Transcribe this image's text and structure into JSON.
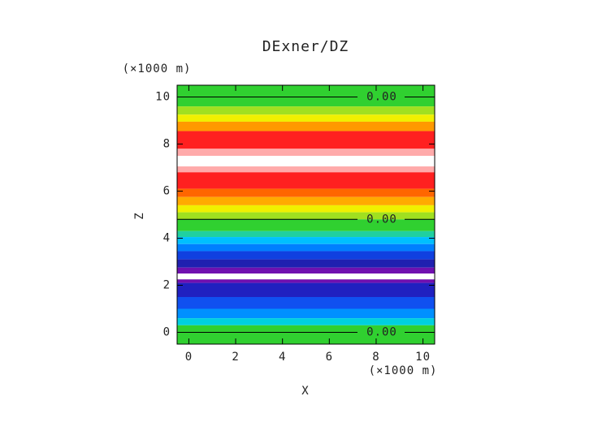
{
  "chart_data": {
    "type": "contour",
    "title": "DExner/DZ",
    "x_label": "X",
    "y_label": "Z",
    "x_unit": "(×1000 m)",
    "y_unit": "(×1000 m)",
    "xlim": [
      -0.5,
      10.5
    ],
    "ylim": [
      -0.5,
      10.5
    ],
    "xticks": [
      0,
      2,
      4,
      6,
      8,
      10
    ],
    "yticks": [
      0,
      2,
      4,
      6,
      8,
      10
    ],
    "bands": [
      {
        "from": 9.6,
        "to": 10.5,
        "color": "#30d030"
      },
      {
        "from": 9.25,
        "to": 9.6,
        "color": "#a0e020"
      },
      {
        "from": 8.95,
        "to": 9.25,
        "color": "#f0f000"
      },
      {
        "from": 8.55,
        "to": 8.95,
        "color": "#ff9900"
      },
      {
        "from": 7.8,
        "to": 8.55,
        "color": "#ff2020"
      },
      {
        "from": 7.5,
        "to": 7.8,
        "color": "#ffaaaa"
      },
      {
        "from": 7.05,
        "to": 7.5,
        "color": "#ffffff"
      },
      {
        "from": 6.8,
        "to": 7.05,
        "color": "#ffaaaa"
      },
      {
        "from": 6.1,
        "to": 6.8,
        "color": "#ff2020"
      },
      {
        "from": 5.75,
        "to": 6.1,
        "color": "#ff6600"
      },
      {
        "from": 5.4,
        "to": 5.75,
        "color": "#ffaa00"
      },
      {
        "from": 5.1,
        "to": 5.4,
        "color": "#f0f000"
      },
      {
        "from": 4.8,
        "to": 5.1,
        "color": "#a0e020"
      },
      {
        "from": 4.3,
        "to": 4.8,
        "color": "#30d030"
      },
      {
        "from": 4.05,
        "to": 4.3,
        "color": "#20d0a0"
      },
      {
        "from": 3.75,
        "to": 4.05,
        "color": "#00c0ff"
      },
      {
        "from": 3.45,
        "to": 3.75,
        "color": "#0080ff"
      },
      {
        "from": 3.1,
        "to": 3.45,
        "color": "#1040e0"
      },
      {
        "from": 2.75,
        "to": 3.1,
        "color": "#2020b0"
      },
      {
        "from": 2.5,
        "to": 2.75,
        "color": "#7010b0"
      },
      {
        "from": 2.25,
        "to": 2.5,
        "color": "#ffffff"
      },
      {
        "from": 2.1,
        "to": 2.25,
        "color": "#7010b0"
      },
      {
        "from": 1.5,
        "to": 2.1,
        "color": "#2020c0"
      },
      {
        "from": 1.0,
        "to": 1.5,
        "color": "#1050f0"
      },
      {
        "from": 0.6,
        "to": 1.0,
        "color": "#0090ff"
      },
      {
        "from": 0.3,
        "to": 0.6,
        "color": "#00d0e0"
      },
      {
        "from": -0.5,
        "to": 0.3,
        "color": "#30d030"
      }
    ],
    "contour_labels": [
      {
        "z": 10.0,
        "label": "0.00"
      },
      {
        "z": 4.8,
        "label": "0.00"
      },
      {
        "z": 0.0,
        "label": "0.00"
      }
    ]
  }
}
